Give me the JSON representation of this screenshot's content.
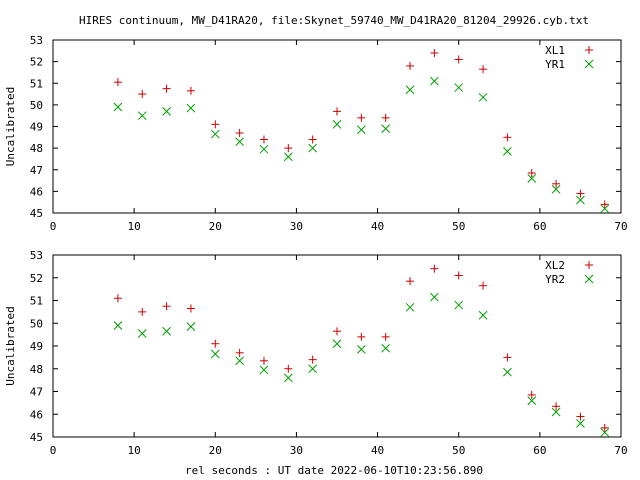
{
  "title": "HIRES continuum, MW_D41RA20, file:Skynet_59740_MW_D41RA20_81204_29926.cyb.txt",
  "xlabel": "rel seconds : UT date 2022-06-10T10:23:56.890",
  "colors": {
    "series1": "#cc0000",
    "series2": "#00a000"
  },
  "chart_data": [
    {
      "type": "scatter",
      "ylabel": "Uncalibrated",
      "xlim": [
        0,
        70
      ],
      "ylim": [
        45,
        53
      ],
      "xticks": [
        0,
        10,
        20,
        30,
        40,
        50,
        60,
        70
      ],
      "yticks": [
        45,
        46,
        47,
        48,
        49,
        50,
        51,
        52,
        53
      ],
      "legend": "top-right",
      "grid": false,
      "x": [
        8,
        11,
        14,
        17,
        20,
        23,
        26,
        29,
        32,
        35,
        38,
        41,
        44,
        47,
        50,
        53,
        56,
        59,
        62,
        65,
        68
      ],
      "series": [
        {
          "name": "XL1",
          "marker": "plus",
          "values": [
            51.05,
            50.5,
            50.75,
            50.65,
            49.1,
            48.7,
            48.4,
            48.0,
            48.4,
            49.7,
            49.4,
            49.4,
            51.8,
            52.4,
            52.1,
            51.65,
            48.5,
            46.85,
            46.35,
            45.9,
            45.4
          ]
        },
        {
          "name": "YR1",
          "marker": "cross",
          "values": [
            49.9,
            49.5,
            49.7,
            49.85,
            48.65,
            48.3,
            47.95,
            47.6,
            48.0,
            49.1,
            48.85,
            48.9,
            50.7,
            51.1,
            50.8,
            50.35,
            47.85,
            46.6,
            46.1,
            45.6,
            45.2
          ]
        }
      ]
    },
    {
      "type": "scatter",
      "ylabel": "Uncalibrated",
      "xlim": [
        0,
        70
      ],
      "ylim": [
        45,
        53
      ],
      "xticks": [
        0,
        10,
        20,
        30,
        40,
        50,
        60,
        70
      ],
      "yticks": [
        45,
        46,
        47,
        48,
        49,
        50,
        51,
        52,
        53
      ],
      "legend": "top-right",
      "grid": false,
      "x": [
        8,
        11,
        14,
        17,
        20,
        23,
        26,
        29,
        32,
        35,
        38,
        41,
        44,
        47,
        50,
        53,
        56,
        59,
        62,
        65,
        68
      ],
      "series": [
        {
          "name": "XL2",
          "marker": "plus",
          "values": [
            51.1,
            50.5,
            50.75,
            50.65,
            49.1,
            48.7,
            48.35,
            48.0,
            48.4,
            49.65,
            49.4,
            49.4,
            51.85,
            52.4,
            52.1,
            51.65,
            48.5,
            46.85,
            46.35,
            45.9,
            45.4
          ]
        },
        {
          "name": "YR2",
          "marker": "cross",
          "values": [
            49.9,
            49.55,
            49.65,
            49.85,
            48.65,
            48.35,
            47.95,
            47.6,
            48.0,
            49.1,
            48.85,
            48.9,
            50.7,
            51.15,
            50.8,
            50.35,
            47.85,
            46.6,
            46.1,
            45.6,
            45.2
          ]
        }
      ]
    }
  ]
}
